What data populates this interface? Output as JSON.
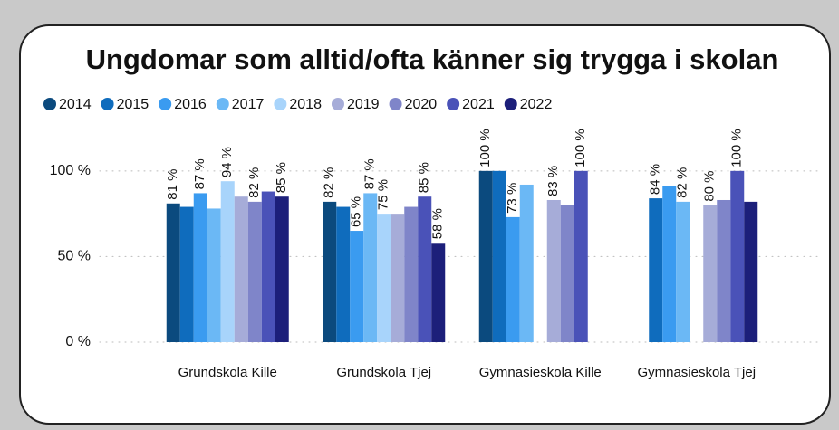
{
  "chart_data": {
    "type": "bar",
    "title": "Ungdomar som alltid/ofta känner sig trygga i skolan",
    "categories": [
      "Grundskola Kille",
      "Grundskola Tjej",
      "Gymnasieskola Kille",
      "Gymnasieskola Tjej"
    ],
    "series": [
      {
        "name": "2014",
        "color": "#0b4a7e",
        "values": [
          81,
          82,
          100,
          null
        ],
        "value_labels": [
          "81 %",
          "82 %",
          "100 %",
          null
        ]
      },
      {
        "name": "2015",
        "color": "#0f6cbd",
        "values": [
          79,
          79,
          100,
          84
        ],
        "value_labels": [
          null,
          null,
          null,
          "84 %"
        ]
      },
      {
        "name": "2016",
        "color": "#3a9bf0",
        "values": [
          87,
          65,
          73,
          91
        ],
        "value_labels": [
          "87 %",
          "65 %",
          "73 %",
          null
        ]
      },
      {
        "name": "2017",
        "color": "#6bb8f5",
        "values": [
          78,
          87,
          92,
          82
        ],
        "value_labels": [
          null,
          "87 %",
          null,
          "82 %"
        ]
      },
      {
        "name": "2018",
        "color": "#a8d4fb",
        "values": [
          94,
          75,
          null,
          null
        ],
        "value_labels": [
          "94 %",
          "75 %",
          null,
          null
        ]
      },
      {
        "name": "2019",
        "color": "#a6acd8",
        "values": [
          85,
          75,
          83,
          80
        ],
        "value_labels": [
          null,
          null,
          "83 %",
          "80 %"
        ]
      },
      {
        "name": "2020",
        "color": "#7f85c9",
        "values": [
          82,
          79,
          80,
          83
        ],
        "value_labels": [
          "82 %",
          null,
          null,
          null
        ]
      },
      {
        "name": "2021",
        "color": "#4a52b8",
        "values": [
          88,
          85,
          100,
          100
        ],
        "value_labels": [
          null,
          "85 %",
          "100 %",
          "100 %"
        ]
      },
      {
        "name": "2022",
        "color": "#1c1f7a",
        "values": [
          85,
          58,
          null,
          82
        ],
        "value_labels": [
          "85 %",
          "58 %",
          null,
          null
        ]
      }
    ],
    "ylim": [
      0,
      120
    ],
    "yticks": [
      {
        "value": 0,
        "label": "0 %"
      },
      {
        "value": 50,
        "label": "50 %"
      },
      {
        "value": 100,
        "label": "100 %"
      }
    ],
    "grid": true
  }
}
